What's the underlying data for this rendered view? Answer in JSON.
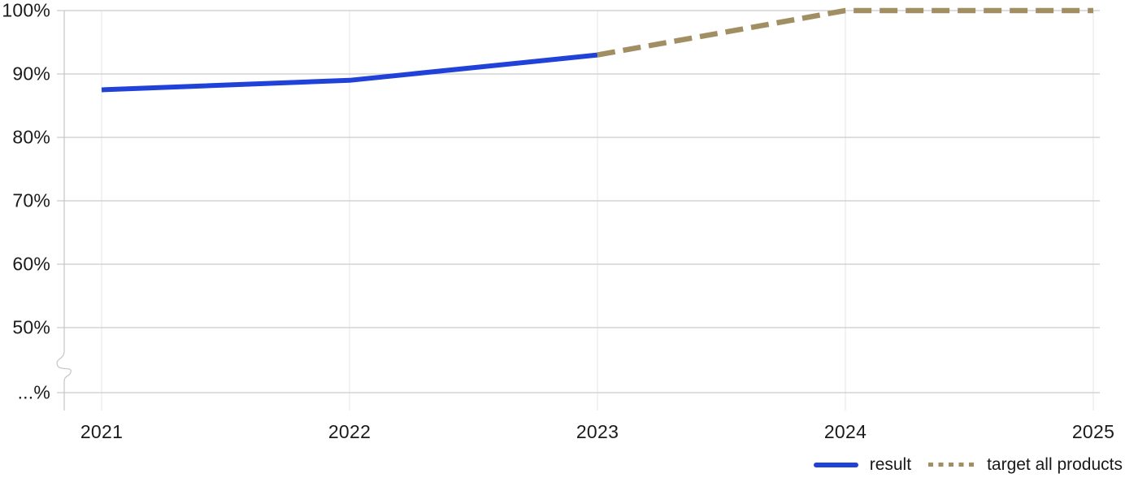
{
  "chart_data": {
    "type": "line",
    "title": "",
    "x_tick_labels": [
      "2021",
      "2022",
      "2023",
      "2024",
      "2025"
    ],
    "y_tick_labels": [
      "100%",
      "90%",
      "80%",
      "70%",
      "60%",
      "50%",
      "...%"
    ],
    "y_axis": {
      "unit": "%",
      "ticks_shown": [
        100,
        90,
        80,
        70,
        60,
        50
      ],
      "broken_axis": true,
      "break_label": "...%"
    },
    "grid": true,
    "series": [
      {
        "name": "result",
        "style": "solid",
        "color": "#2042d9",
        "x": [
          2021,
          2022,
          2023
        ],
        "values": [
          87.5,
          89,
          93
        ]
      },
      {
        "name": "target all products",
        "style": "dashed",
        "color": "#a18e62",
        "x": [
          2023,
          2024,
          2025
        ],
        "values": [
          93,
          100,
          100
        ]
      }
    ],
    "legend": {
      "position": "bottom-right",
      "entries": [
        {
          "label": "result"
        },
        {
          "label": "target all products"
        }
      ]
    }
  }
}
